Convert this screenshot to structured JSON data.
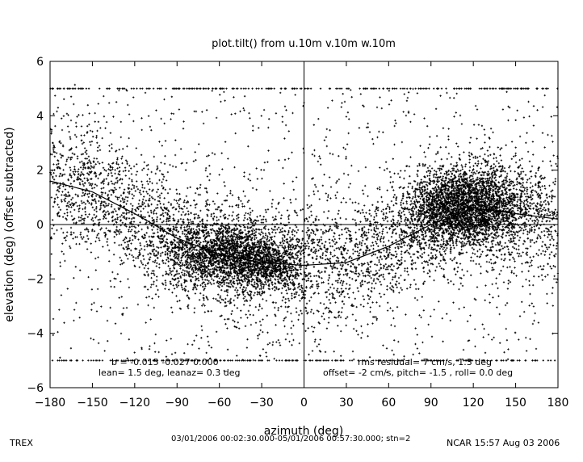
{
  "chart_data": {
    "type": "scatter",
    "title": "plot.tilt() from u.10m v.10m w.10m",
    "xlabel": "azimuth (deg)",
    "ylabel": "elevation (deg)  (offset subtracted)",
    "xlim": [
      -180,
      180
    ],
    "ylim": [
      -6,
      6
    ],
    "xticks": [
      -180,
      -150,
      -120,
      -90,
      -60,
      -30,
      0,
      30,
      60,
      90,
      120,
      150,
      180
    ],
    "yticks": [
      -6,
      -4,
      -2,
      0,
      2,
      4,
      6
    ],
    "grid": false,
    "zero_lines": true,
    "fit_curve": {
      "x": [
        -180,
        -150,
        -120,
        -90,
        -60,
        -30,
        0,
        30,
        60,
        90,
        120,
        150,
        180
      ],
      "y": [
        1.6,
        1.2,
        0.4,
        -0.5,
        -1.1,
        -1.4,
        -1.5,
        -1.4,
        -0.8,
        0.0,
        0.6,
        0.4,
        0.2
      ]
    },
    "clusters": [
      {
        "x": -55,
        "y": -1.1,
        "sx": 22,
        "sy": 0.6,
        "n": 1800
      },
      {
        "x": -25,
        "y": -1.5,
        "sx": 12,
        "sy": 0.4,
        "n": 500
      },
      {
        "x": 110,
        "y": 0.6,
        "sx": 18,
        "sy": 0.7,
        "n": 2200
      },
      {
        "x": 135,
        "y": 0.7,
        "sx": 15,
        "sy": 0.6,
        "n": 600
      }
    ],
    "edge_rows_y": [
      5,
      -5
    ],
    "annotations": {
      "b": "b = -0.015 -0.027  0.000",
      "lean": "lean= 1.5 deg, leanaz= 0.3 deg",
      "rms": "rms residual= 7 cm/s, 1.3 deg",
      "offset": "offset= -2 cm/s, pitch= -1.5 , roll=  0.0 deg"
    }
  },
  "footer": {
    "left": "TREX",
    "middle": "03/01/2006 00:02:30.000-05/01/2006 00:57:30.000; stn=2",
    "right": "NCAR 15:57 Aug 03 2006"
  },
  "colors": {
    "ink": "#000000",
    "background": "#ffffff"
  }
}
